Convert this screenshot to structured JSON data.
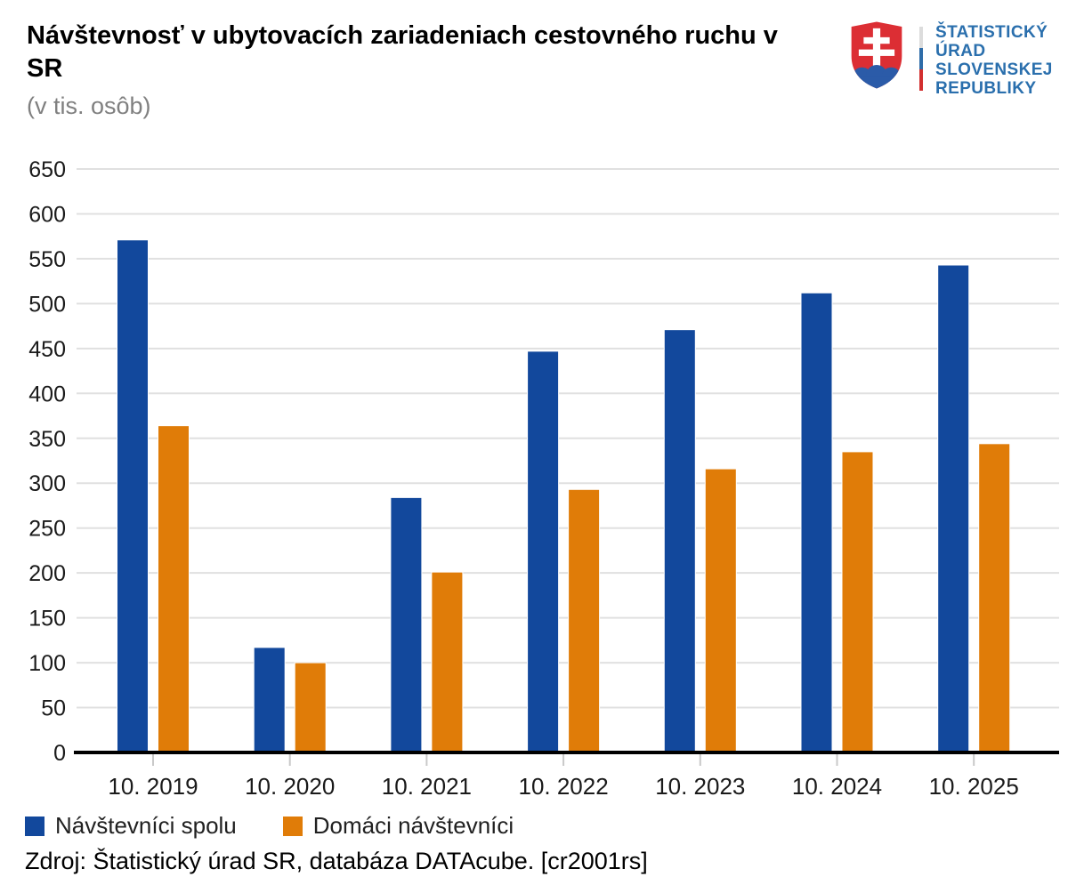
{
  "header": {
    "title": "Návštevnosť v ubytovacích zariadeniach cestovného ruchu v SR",
    "subtitle": "(v tis. osôb)",
    "logo_lines": [
      "ŠTATISTICKÝ",
      "ÚRAD",
      "SLOVENSKEJ",
      "REPUBLIKY"
    ]
  },
  "chart_data": {
    "type": "bar",
    "title": "Návštevnosť v ubytovacích zariadeniach cestovného ruchu v SR",
    "subtitle": "(v tis. osôb)",
    "categories": [
      "10. 2019",
      "10. 2020",
      "10. 2021",
      "10. 2022",
      "10. 2023",
      "10. 2024",
      "10. 2025"
    ],
    "series": [
      {
        "name": "Návštevníci spolu",
        "color": "#12489c",
        "values": [
          571,
          117,
          284,
          447,
          471,
          512,
          543
        ]
      },
      {
        "name": "Domáci návštevníci",
        "color": "#e07c08",
        "values": [
          364,
          100,
          201,
          293,
          316,
          335,
          344
        ]
      }
    ],
    "xlabel": "",
    "ylabel": "",
    "ylim": [
      0,
      650
    ],
    "ytick_step": 50,
    "grid": true,
    "legend_position": "bottom"
  },
  "source": "Zdroj: Štatistický úrad SR, databáza DATAcube. [cr2001rs]",
  "colors": {
    "grid": "#e0e0e0",
    "axis": "#000000",
    "tick": "#c9c9c9",
    "text": "#1a1a1a",
    "logo_blue": "#2a6fad",
    "shield_red": "#dc2e34",
    "hill_blue": "#2b5ba8",
    "stripe_white": "#dcdcdc",
    "stripe_blue": "#2e6ca8",
    "stripe_red": "#d22f2f"
  }
}
